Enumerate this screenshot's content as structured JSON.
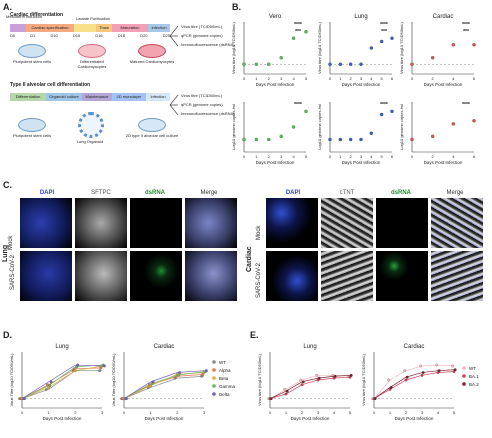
{
  "panels": {
    "a": "A.",
    "b": "B.",
    "c": "C.",
    "d": "D.",
    "e": "E."
  },
  "panelA": {
    "cardiac_title": "Cardiac differentiation",
    "cardiac_steps": [
      "Mesoderm induction",
      "Cardiac specification",
      "Lactate Purification",
      "Thaw",
      "Maturation",
      "Infection"
    ],
    "cardiac_days": [
      "D0",
      "D1",
      "D10",
      "D15",
      "D16",
      "D18",
      "D20",
      "D25"
    ],
    "cardiac_cells": [
      "Pluripotent stem cells",
      "Differentiated Cardiomyocytes",
      "Matured Cardiomyocytes"
    ],
    "cardiac_readouts": [
      "Virus titre (TCID50/mL)",
      "qPCR (genome copies)",
      "Immunofluorescence (dsRNA)"
    ],
    "lung_title": "Type II alveolar cell differentiation",
    "lung_steps": [
      "Differentiation",
      "Organoid culture",
      "Maintenance",
      "2D monolayer",
      "Infection"
    ],
    "lung_cells": [
      "Pluripotent stem cells",
      "Lung Organoid",
      "2D type II alveolar cell culture"
    ],
    "lung_readouts": [
      "Virus titre (TCID50/mL)",
      "qPCR (genome copies)",
      "Immunofluorescence (dsRNA)"
    ]
  },
  "panelB": {
    "titles": [
      "Vero",
      "Lung",
      "Cardiac"
    ],
    "ylabel_top": "Virus titre (log10 TCID50/mL)",
    "ylabel_bottom": "Log10 genome copies /ml",
    "xlabel": "Days Post Infection",
    "sig": "****",
    "sig3": "***",
    "sig2": "**"
  },
  "panelC": {
    "lung_headers": [
      "DAPI",
      "SFTPC",
      "dsRNA",
      "Merge"
    ],
    "cardiac_headers": [
      "DAPI",
      "cTNT",
      "dsRNA",
      "Merge"
    ],
    "rows": [
      "Mock",
      "SARS-CoV-2"
    ],
    "lung_label": "Lung",
    "cardiac_label": "Cardiac"
  },
  "panelD": {
    "titles": [
      "Lung",
      "Cardiac"
    ],
    "ylabel": "Virus Titer (log10 TCID50/mL)",
    "xlabel": "Days Post Infection",
    "legend": [
      {
        "name": "WT",
        "color": "#8a8a8a"
      },
      {
        "name": "Alpha",
        "color": "#e07a4f"
      },
      {
        "name": "Beta",
        "color": "#d9b13b"
      },
      {
        "name": "Gamma",
        "color": "#6fb26a"
      },
      {
        "name": "Delta",
        "color": "#7a5fb5"
      }
    ]
  },
  "panelE": {
    "titles": [
      "Lung",
      "Cardiac"
    ],
    "ylabel": "Virus titre (log10 TCID50/mL)",
    "xlabel": "Days Post Infection",
    "legend": [
      {
        "name": "WT",
        "color": "#f2b8c0"
      },
      {
        "name": "BA.1",
        "color": "#d0405a"
      },
      {
        "name": "BA.2",
        "color": "#7d1f2e"
      }
    ]
  },
  "chart_data": [
    {
      "type": "scatter",
      "title": "Vero",
      "ylabel": "Virus titre (log10 TCID50/mL)",
      "xlabel": "Days Post Infection",
      "x": [
        0,
        1,
        2,
        3,
        4,
        5
      ],
      "series": [
        {
          "values": [
            1.5,
            1.5,
            1.5,
            2.5,
            5.5,
            6.5
          ]
        }
      ]
    },
    {
      "type": "scatter",
      "title": "Lung",
      "ylabel": "Virus titre (log10 TCID50/mL)",
      "xlabel": "Days Post Infection",
      "x": [
        0,
        1,
        2,
        3,
        4,
        5,
        6
      ],
      "series": [
        {
          "values": [
            1.5,
            1.5,
            1.5,
            1.5,
            4,
            5,
            5.5
          ]
        }
      ]
    },
    {
      "type": "scatter",
      "title": "Cardiac",
      "ylabel": "Virus titre (log10 TCID50/mL)",
      "xlabel": "Days Post Infection",
      "x": [
        0,
        2,
        4,
        6
      ],
      "series": [
        {
          "values": [
            1.5,
            2.5,
            4.5,
            4.5
          ]
        }
      ]
    },
    {
      "type": "scatter",
      "ylabel": "Log10 genome copies /ml",
      "xlabel": "Days Post Infection",
      "x": [
        0,
        1,
        2,
        3,
        4,
        5
      ],
      "series": [
        {
          "values": [
            5,
            5,
            5,
            5.5,
            7,
            9.5
          ]
        }
      ]
    },
    {
      "type": "scatter",
      "ylabel": "Log10 genome copies /ml",
      "xlabel": "Days Post Infection",
      "x": [
        0,
        1,
        2,
        3,
        4,
        5,
        6
      ],
      "series": [
        {
          "values": [
            5,
            5,
            5,
            5,
            6,
            9,
            9.5
          ]
        }
      ]
    },
    {
      "type": "scatter",
      "ylabel": "Log10 genome copies /ml",
      "xlabel": "Days Post Infection",
      "x": [
        0,
        2,
        4,
        6
      ],
      "series": [
        {
          "values": [
            5,
            5.5,
            7.5,
            8
          ]
        }
      ]
    },
    {
      "type": "line",
      "title": "Lung",
      "ylabel": "Virus Titer (log10 TCID50/mL)",
      "xlabel": "Days Post Infection",
      "x": [
        0,
        1,
        2,
        3
      ],
      "series": [
        {
          "name": "WT",
          "values": [
            1,
            2,
            4,
            4
          ]
        },
        {
          "name": "Alpha",
          "values": [
            1,
            2.5,
            4.2,
            4.3
          ]
        },
        {
          "name": "Beta",
          "values": [
            1,
            2.2,
            4,
            4.5
          ]
        },
        {
          "name": "Gamma",
          "values": [
            1,
            2.4,
            4.4,
            4.6
          ]
        },
        {
          "name": "Delta",
          "values": [
            1,
            2.8,
            4.6,
            4.5
          ]
        }
      ]
    },
    {
      "type": "line",
      "title": "Cardiac",
      "ylabel": "Virus Titer (log10 TCID50/mL)",
      "xlabel": "Days Post Infection",
      "x": [
        0,
        1,
        2,
        3
      ],
      "series": [
        {
          "name": "WT",
          "values": [
            1,
            2.2,
            3.2,
            3.4
          ]
        },
        {
          "name": "Alpha",
          "values": [
            1,
            2.5,
            3.4,
            3.6
          ]
        },
        {
          "name": "Beta",
          "values": [
            1,
            2.4,
            3.6,
            3.8
          ]
        },
        {
          "name": "Gamma",
          "values": [
            1,
            2.6,
            3.5,
            3.9
          ]
        },
        {
          "name": "Delta",
          "values": [
            1,
            2.8,
            3.8,
            4
          ]
        }
      ]
    },
    {
      "type": "line",
      "title": "Lung",
      "ylabel": "Virus titre (log10 TCID50/mL)",
      "xlabel": "Days Post Infection",
      "x": [
        0,
        1,
        2,
        3,
        4,
        5
      ],
      "series": [
        {
          "name": "WT",
          "values": [
            1,
            2,
            3,
            3.5,
            3.5,
            3.4
          ]
        },
        {
          "name": "BA.1",
          "values": [
            1,
            1.5,
            2.5,
            3,
            3.2,
            3.3
          ]
        },
        {
          "name": "BA.2",
          "values": [
            1,
            1.8,
            2.8,
            3.2,
            3.4,
            3.5
          ]
        }
      ]
    },
    {
      "type": "line",
      "title": "Cardiac",
      "ylabel": "Virus titre (log10 TCID50/mL)",
      "xlabel": "Days Post Infection",
      "x": [
        0,
        1,
        2,
        3,
        4,
        5
      ],
      "series": [
        {
          "name": "WT",
          "values": [
            1,
            3,
            4,
            4.5,
            4.6,
            4.5
          ]
        },
        {
          "name": "BA.1",
          "values": [
            1,
            2,
            3,
            3.5,
            3.8,
            3.9
          ]
        },
        {
          "name": "BA.2",
          "values": [
            1,
            2.2,
            3.3,
            3.8,
            4,
            4.1
          ]
        }
      ]
    }
  ]
}
